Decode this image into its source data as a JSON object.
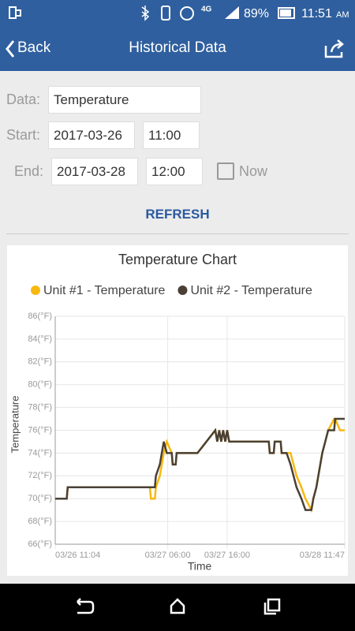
{
  "status_bar": {
    "network": "4G",
    "battery": "89%",
    "time": "11:51",
    "ampm": "AM"
  },
  "header": {
    "back": "Back",
    "title": "Historical Data"
  },
  "form": {
    "data_label": "Data:",
    "data_value": "Temperature",
    "start_label": "Start:",
    "start_date": "2017-03-26",
    "start_time": "11:00",
    "end_label": "End:",
    "end_date": "2017-03-28",
    "end_time": "12:00",
    "now_label": "Now",
    "refresh": "REFRESH"
  },
  "chart_data": {
    "type": "line",
    "title": "Temperature Chart",
    "x_label": "Time",
    "y_label": "Temperature",
    "x": [
      "03/26 11:04",
      "03/26 13:00",
      "03/26 13:10",
      "03/27 03:00",
      "03/27 03:10",
      "03/27 03:50",
      "03/27 04:00",
      "03/27 04:40",
      "03/27 05:20",
      "03/27 05:50",
      "03/27 06:40",
      "03/27 06:50",
      "03/27 07:20",
      "03/27 07:30",
      "03/27 11:00",
      "03/27 14:00",
      "03/27 14:20",
      "03/27 14:40",
      "03/27 15:00",
      "03/27 15:20",
      "03/27 15:40",
      "03/27 16:00",
      "03/27 16:20",
      "03/27 23:00",
      "03/27 23:10",
      "03/27 23:50",
      "03/28 00:00",
      "03/28 01:00",
      "03/28 01:10",
      "03/28 02:00",
      "03/28 02:40",
      "03/28 03:10",
      "03/28 03:40",
      "03/28 04:30",
      "03/28 05:10",
      "03/28 06:10",
      "03/28 06:30",
      "03/28 07:00",
      "03/28 07:20",
      "03/28 07:40",
      "03/28 08:00",
      "03/28 08:30",
      "03/28 09:00",
      "03/28 10:00",
      "03/28 10:10",
      "03/28 11:00",
      "03/28 11:47"
    ],
    "series": [
      {
        "name": "Unit #1 - Temperature",
        "color": "#f7b90f",
        "values": [
          70,
          70,
          71,
          71,
          70,
          70,
          71,
          72,
          74,
          75,
          74,
          73,
          73,
          74,
          74,
          76,
          75,
          76,
          75,
          76,
          75,
          76,
          75,
          75,
          74,
          74,
          75,
          75,
          74,
          74,
          74,
          73,
          72,
          71,
          70,
          69,
          70,
          71,
          72,
          73,
          74,
          75,
          76,
          77,
          77,
          76,
          76
        ]
      },
      {
        "name": "Unit #2 - Temperature",
        "color": "#4a4035",
        "values": [
          70,
          70,
          71,
          71,
          71,
          71,
          72,
          73,
          75,
          74,
          74,
          73,
          73,
          74,
          74,
          76,
          75,
          76,
          75,
          76,
          75,
          76,
          75,
          75,
          74,
          74,
          75,
          75,
          74,
          74,
          73,
          72,
          71,
          70,
          69,
          69,
          70,
          71,
          72,
          73,
          74,
          75,
          76,
          76,
          77,
          77,
          77
        ]
      }
    ],
    "xlim": [
      "03/26 11:04",
      "03/28 11:47"
    ],
    "xticks": [
      "03/26 11:04",
      "03/27 06:00",
      "03/27 16:00",
      "03/28 11:47"
    ],
    "ylim": [
      66,
      86
    ],
    "yticks": [
      {
        "value": 66,
        "label": "66(°F)"
      },
      {
        "value": 68,
        "label": "68(°F)"
      },
      {
        "value": 70,
        "label": "70(°F)"
      },
      {
        "value": 72,
        "label": "72(°F)"
      },
      {
        "value": 74,
        "label": "74(°F)"
      },
      {
        "value": 76,
        "label": "76(°F)"
      },
      {
        "value": 78,
        "label": "78(°F)"
      },
      {
        "value": 80,
        "label": "80(°F)"
      },
      {
        "value": 82,
        "label": "82(°F)"
      },
      {
        "value": 84,
        "label": "84(°F)"
      },
      {
        "value": 86,
        "label": "86(°F)"
      }
    ],
    "grid": true
  }
}
